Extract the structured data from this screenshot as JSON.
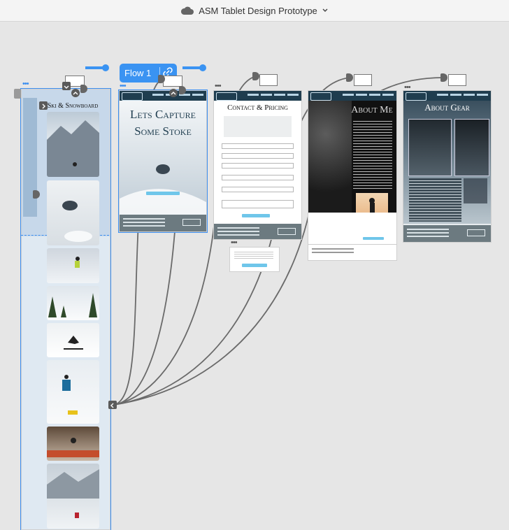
{
  "window": {
    "title": "ASM Tablet Design Prototype",
    "cloud_icon": "cloud-icon",
    "chevron_icon": "chevron-down-icon"
  },
  "flow": {
    "label": "Flow 1",
    "link_icon": "link-icon"
  },
  "artboards": {
    "ski": {
      "title": "Ski & Snowboard"
    },
    "home": {
      "title_line1": "Lets Capture",
      "title_line2": "Some Stoke"
    },
    "contact": {
      "title": "Contact & Pricing"
    },
    "about_me": {
      "title": "About Me"
    },
    "about_gear": {
      "title": "About Gear"
    }
  },
  "colors": {
    "accent": "#3a93f2",
    "nav": "#1f3d4f",
    "footer": "#6c7a80",
    "button": "#6fc6ea"
  }
}
